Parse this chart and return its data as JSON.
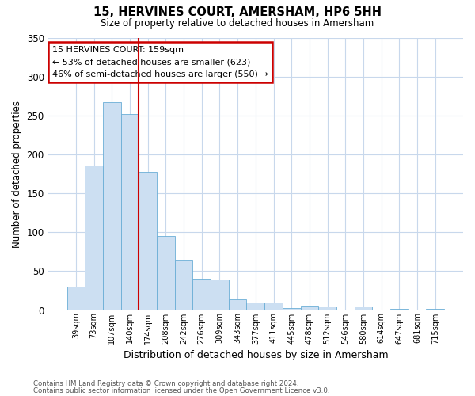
{
  "title": "15, HERVINES COURT, AMERSHAM, HP6 5HH",
  "subtitle": "Size of property relative to detached houses in Amersham",
  "xlabel": "Distribution of detached houses by size in Amersham",
  "ylabel": "Number of detached properties",
  "footnote1": "Contains HM Land Registry data © Crown copyright and database right 2024.",
  "footnote2": "Contains public sector information licensed under the Open Government Licence v3.0.",
  "bin_labels": [
    "39sqm",
    "73sqm",
    "107sqm",
    "140sqm",
    "174sqm",
    "208sqm",
    "242sqm",
    "276sqm",
    "309sqm",
    "343sqm",
    "377sqm",
    "411sqm",
    "445sqm",
    "478sqm",
    "512sqm",
    "546sqm",
    "580sqm",
    "614sqm",
    "647sqm",
    "681sqm",
    "715sqm"
  ],
  "bar_values": [
    30,
    186,
    267,
    252,
    178,
    95,
    65,
    40,
    39,
    14,
    10,
    10,
    3,
    6,
    5,
    1,
    5,
    1,
    2,
    0,
    2
  ],
  "bar_color": "#ccdff2",
  "bar_edge_color": "#6aaed6",
  "vline_x_index": 3.5,
  "vline_color": "#cc0000",
  "annotation_title": "15 HERVINES COURT: 159sqm",
  "annotation_line1": "← 53% of detached houses are smaller (623)",
  "annotation_line2": "46% of semi-detached houses are larger (550) →",
  "annotation_box_edge": "#cc0000",
  "ylim": [
    0,
    350
  ],
  "yticks": [
    0,
    50,
    100,
    150,
    200,
    250,
    300,
    350
  ],
  "background_color": "#ffffff",
  "grid_color": "#c8d8ec"
}
